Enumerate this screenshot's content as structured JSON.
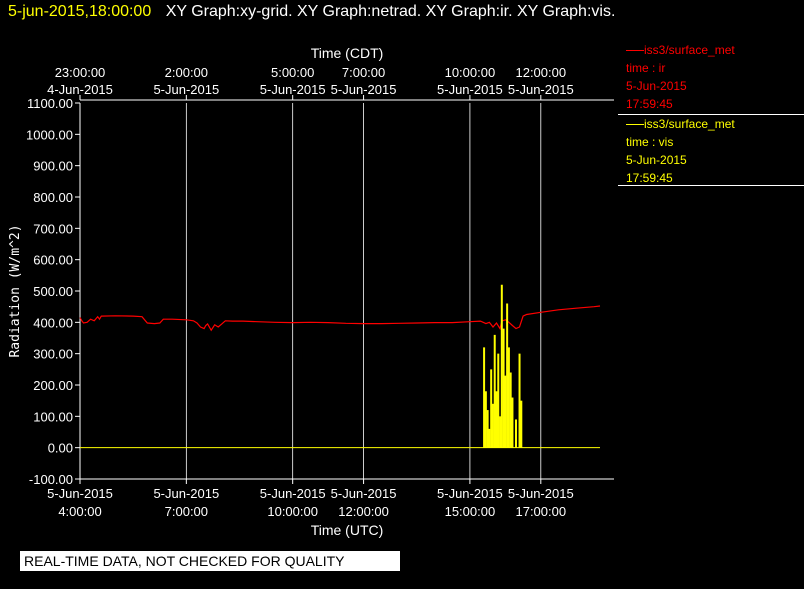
{
  "header": {
    "date": "5-jun-2015,18:00:00",
    "graphs": "XY Graph:xy-grid.  XY Graph:netrad.  XY Graph:ir.  XY Graph:vis."
  },
  "legend": [
    {
      "line1": "iss3/surface_met",
      "line2": "time : ir",
      "line3": "5-Jun-2015",
      "line4": "17:59:45",
      "color": "#ff0000"
    },
    {
      "line1": "iss3/surface_met",
      "line2": "time : vis",
      "line3": "5-Jun-2015",
      "line4": "17:59:45",
      "color": "#ffff00"
    }
  ],
  "banner": "REAL-TIME DATA, NOT CHECKED FOR QUALITY",
  "chart_data": {
    "type": "line",
    "ylabel": "Radiation  (W/m^2)",
    "xlabel_bottom": "Time (UTC)",
    "xlabel_top": "Time (CDT)",
    "ylim": [
      -100,
      1100
    ],
    "yticks": [
      "-100.00",
      "0.00",
      "100.00",
      "200.00",
      "300.00",
      "400.00",
      "500.00",
      "600.00",
      "700.00",
      "800.00",
      "900.00",
      "1000.00",
      "1100.00"
    ],
    "xlim": [
      4.0,
      18.67
    ],
    "bottom_ticks": [
      {
        "x": 4,
        "time": "4:00:00",
        "date": "5-Jun-2015"
      },
      {
        "x": 7,
        "time": "7:00:00",
        "date": "5-Jun-2015"
      },
      {
        "x": 10,
        "time": "10:00:00",
        "date": "5-Jun-2015"
      },
      {
        "x": 12,
        "time": "12:00:00",
        "date": "5-Jun-2015"
      },
      {
        "x": 15,
        "time": "15:00:00",
        "date": "5-Jun-2015"
      },
      {
        "x": 17,
        "time": "17:00:00",
        "date": "5-Jun-2015"
      }
    ],
    "top_ticks": [
      {
        "x": 4,
        "time": "23:00:00",
        "date": "4-Jun-2015"
      },
      {
        "x": 7,
        "time": "2:00:00",
        "date": "5-Jun-2015"
      },
      {
        "x": 10,
        "time": "5:00:00",
        "date": "5-Jun-2015"
      },
      {
        "x": 12,
        "time": "7:00:00",
        "date": "5-Jun-2015"
      },
      {
        "x": 15,
        "time": "10:00:00",
        "date": "5-Jun-2015"
      },
      {
        "x": 17,
        "time": "12:00:00",
        "date": "5-Jun-2015"
      }
    ],
    "grid": "vertical",
    "series": [
      {
        "color": "#ff0000",
        "style": "line",
        "points": [
          [
            4.0,
            415
          ],
          [
            4.05,
            405
          ],
          [
            4.1,
            398
          ],
          [
            4.2,
            400
          ],
          [
            4.3,
            410
          ],
          [
            4.4,
            405
          ],
          [
            4.5,
            418
          ],
          [
            4.55,
            410
          ],
          [
            4.6,
            420
          ],
          [
            5.0,
            421
          ],
          [
            5.5,
            420
          ],
          [
            5.75,
            418
          ],
          [
            5.9,
            398
          ],
          [
            6.1,
            396
          ],
          [
            6.25,
            398
          ],
          [
            6.35,
            410
          ],
          [
            6.6,
            410
          ],
          [
            7.0,
            408
          ],
          [
            7.2,
            405
          ],
          [
            7.3,
            398
          ],
          [
            7.4,
            385
          ],
          [
            7.5,
            380
          ],
          [
            7.55,
            390
          ],
          [
            7.6,
            395
          ],
          [
            7.7,
            375
          ],
          [
            7.8,
            392
          ],
          [
            7.9,
            385
          ],
          [
            8.0,
            395
          ],
          [
            8.1,
            405
          ],
          [
            8.3,
            404
          ],
          [
            8.6,
            404
          ],
          [
            9.0,
            402
          ],
          [
            9.5,
            400
          ],
          [
            10.0,
            399
          ],
          [
            10.5,
            400
          ],
          [
            11.0,
            399
          ],
          [
            11.5,
            397
          ],
          [
            12.0,
            396
          ],
          [
            12.5,
            396
          ],
          [
            13.0,
            397
          ],
          [
            13.5,
            398
          ],
          [
            14.0,
            399
          ],
          [
            14.5,
            399
          ],
          [
            15.0,
            402
          ],
          [
            15.3,
            404
          ],
          [
            15.45,
            396
          ],
          [
            15.55,
            400
          ],
          [
            15.65,
            385
          ],
          [
            15.75,
            398
          ],
          [
            15.85,
            380
          ],
          [
            15.9,
            404
          ],
          [
            16.0,
            408
          ],
          [
            16.1,
            400
          ],
          [
            16.2,
            390
          ],
          [
            16.3,
            380
          ],
          [
            16.4,
            385
          ],
          [
            16.5,
            420
          ],
          [
            16.6,
            425
          ],
          [
            17.0,
            432
          ],
          [
            17.5,
            440
          ],
          [
            18.0,
            445
          ],
          [
            18.5,
            450
          ],
          [
            18.67,
            452
          ]
        ]
      },
      {
        "color": "#ffff00",
        "style": "spikes",
        "baseline": 0,
        "points": [
          [
            15.4,
            320
          ],
          [
            15.45,
            180
          ],
          [
            15.5,
            120
          ],
          [
            15.55,
            60
          ],
          [
            15.6,
            250
          ],
          [
            15.65,
            140
          ],
          [
            15.7,
            360
          ],
          [
            15.75,
            180
          ],
          [
            15.8,
            300
          ],
          [
            15.85,
            100
          ],
          [
            15.9,
            520
          ],
          [
            15.95,
            380
          ],
          [
            16.0,
            230
          ],
          [
            16.05,
            460
          ],
          [
            16.1,
            320
          ],
          [
            16.15,
            240
          ],
          [
            16.2,
            160
          ],
          [
            16.3,
            90
          ],
          [
            16.4,
            300
          ],
          [
            16.45,
            150
          ]
        ]
      }
    ]
  }
}
